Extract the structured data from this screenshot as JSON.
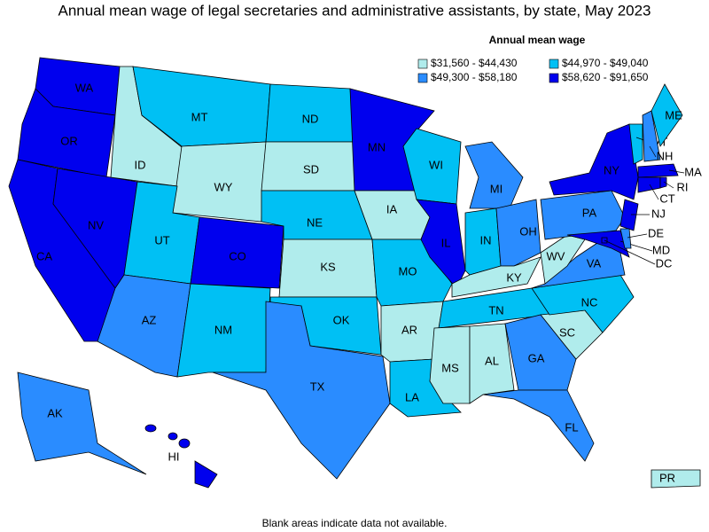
{
  "title": "Annual mean wage of legal secretaries and administrative assistants, by state, May 2023",
  "legend": {
    "title": "Annual mean wage",
    "items": [
      {
        "label": "$31,560 - $44,430",
        "color": "#b0ecec"
      },
      {
        "label": "$44,970 - $49,040",
        "color": "#00c0f4"
      },
      {
        "label": "$49,300 - $58,180",
        "color": "#2a8cff"
      },
      {
        "label": "$58,620 - $91,650",
        "color": "#0000ee"
      }
    ]
  },
  "states": [
    {
      "label": "WA",
      "color": "#0000ee"
    },
    {
      "label": "OR",
      "color": "#0000ee"
    },
    {
      "label": "CA",
      "color": "#0000ee"
    },
    {
      "label": "NV",
      "color": "#0000ee"
    },
    {
      "label": "ID",
      "color": "#b0ecec"
    },
    {
      "label": "MT",
      "color": "#00c0f4"
    },
    {
      "label": "WY",
      "color": "#b0ecec"
    },
    {
      "label": "UT",
      "color": "#00c0f4"
    },
    {
      "label": "AZ",
      "color": "#2a8cff"
    },
    {
      "label": "CO",
      "color": "#0000ee"
    },
    {
      "label": "NM",
      "color": "#00c0f4"
    },
    {
      "label": "ND",
      "color": "#00c0f4"
    },
    {
      "label": "SD",
      "color": "#b0ecec"
    },
    {
      "label": "NE",
      "color": "#00c0f4"
    },
    {
      "label": "KS",
      "color": "#b0ecec"
    },
    {
      "label": "OK",
      "color": "#00c0f4"
    },
    {
      "label": "TX",
      "color": "#2a8cff"
    },
    {
      "label": "MN",
      "color": "#0000ee"
    },
    {
      "label": "IA",
      "color": "#b0ecec"
    },
    {
      "label": "MO",
      "color": "#00c0f4"
    },
    {
      "label": "AR",
      "color": "#b0ecec"
    },
    {
      "label": "LA",
      "color": "#00c0f4"
    },
    {
      "label": "WI",
      "color": "#00c0f4"
    },
    {
      "label": "IL",
      "color": "#0000ee"
    },
    {
      "label": "MI",
      "color": "#2a8cff"
    },
    {
      "label": "IN",
      "color": "#00c0f4"
    },
    {
      "label": "OH",
      "color": "#2a8cff"
    },
    {
      "label": "KY",
      "color": "#b0ecec"
    },
    {
      "label": "TN",
      "color": "#00c0f4"
    },
    {
      "label": "MS",
      "color": "#b0ecec"
    },
    {
      "label": "AL",
      "color": "#b0ecec"
    },
    {
      "label": "GA",
      "color": "#2a8cff"
    },
    {
      "label": "FL",
      "color": "#2a8cff"
    },
    {
      "label": "SC",
      "color": "#b0ecec"
    },
    {
      "label": "NC",
      "color": "#00c0f4"
    },
    {
      "label": "VA",
      "color": "#2a8cff"
    },
    {
      "label": "WV",
      "color": "#b0ecec"
    },
    {
      "label": "PA",
      "color": "#2a8cff"
    },
    {
      "label": "NY",
      "color": "#0000ee"
    },
    {
      "label": "NJ",
      "color": "#0000ee"
    },
    {
      "label": "MD",
      "color": "#0000ee"
    },
    {
      "label": "DE",
      "color": "#2a8cff"
    },
    {
      "label": "DC",
      "color": "#0000ee"
    },
    {
      "label": "VT",
      "color": "#00c0f4"
    },
    {
      "label": "NH",
      "color": "#2a8cff"
    },
    {
      "label": "ME",
      "color": "#00c0f4"
    },
    {
      "label": "MA",
      "color": "#0000ee"
    },
    {
      "label": "CT",
      "color": "#0000ee"
    },
    {
      "label": "RI",
      "color": "#0000ee"
    },
    {
      "label": "AK",
      "color": "#2a8cff"
    },
    {
      "label": "HI",
      "color": "#0000ee"
    },
    {
      "label": "PR",
      "color": "#b0ecec"
    }
  ],
  "footnote": "Blank areas indicate data not available."
}
